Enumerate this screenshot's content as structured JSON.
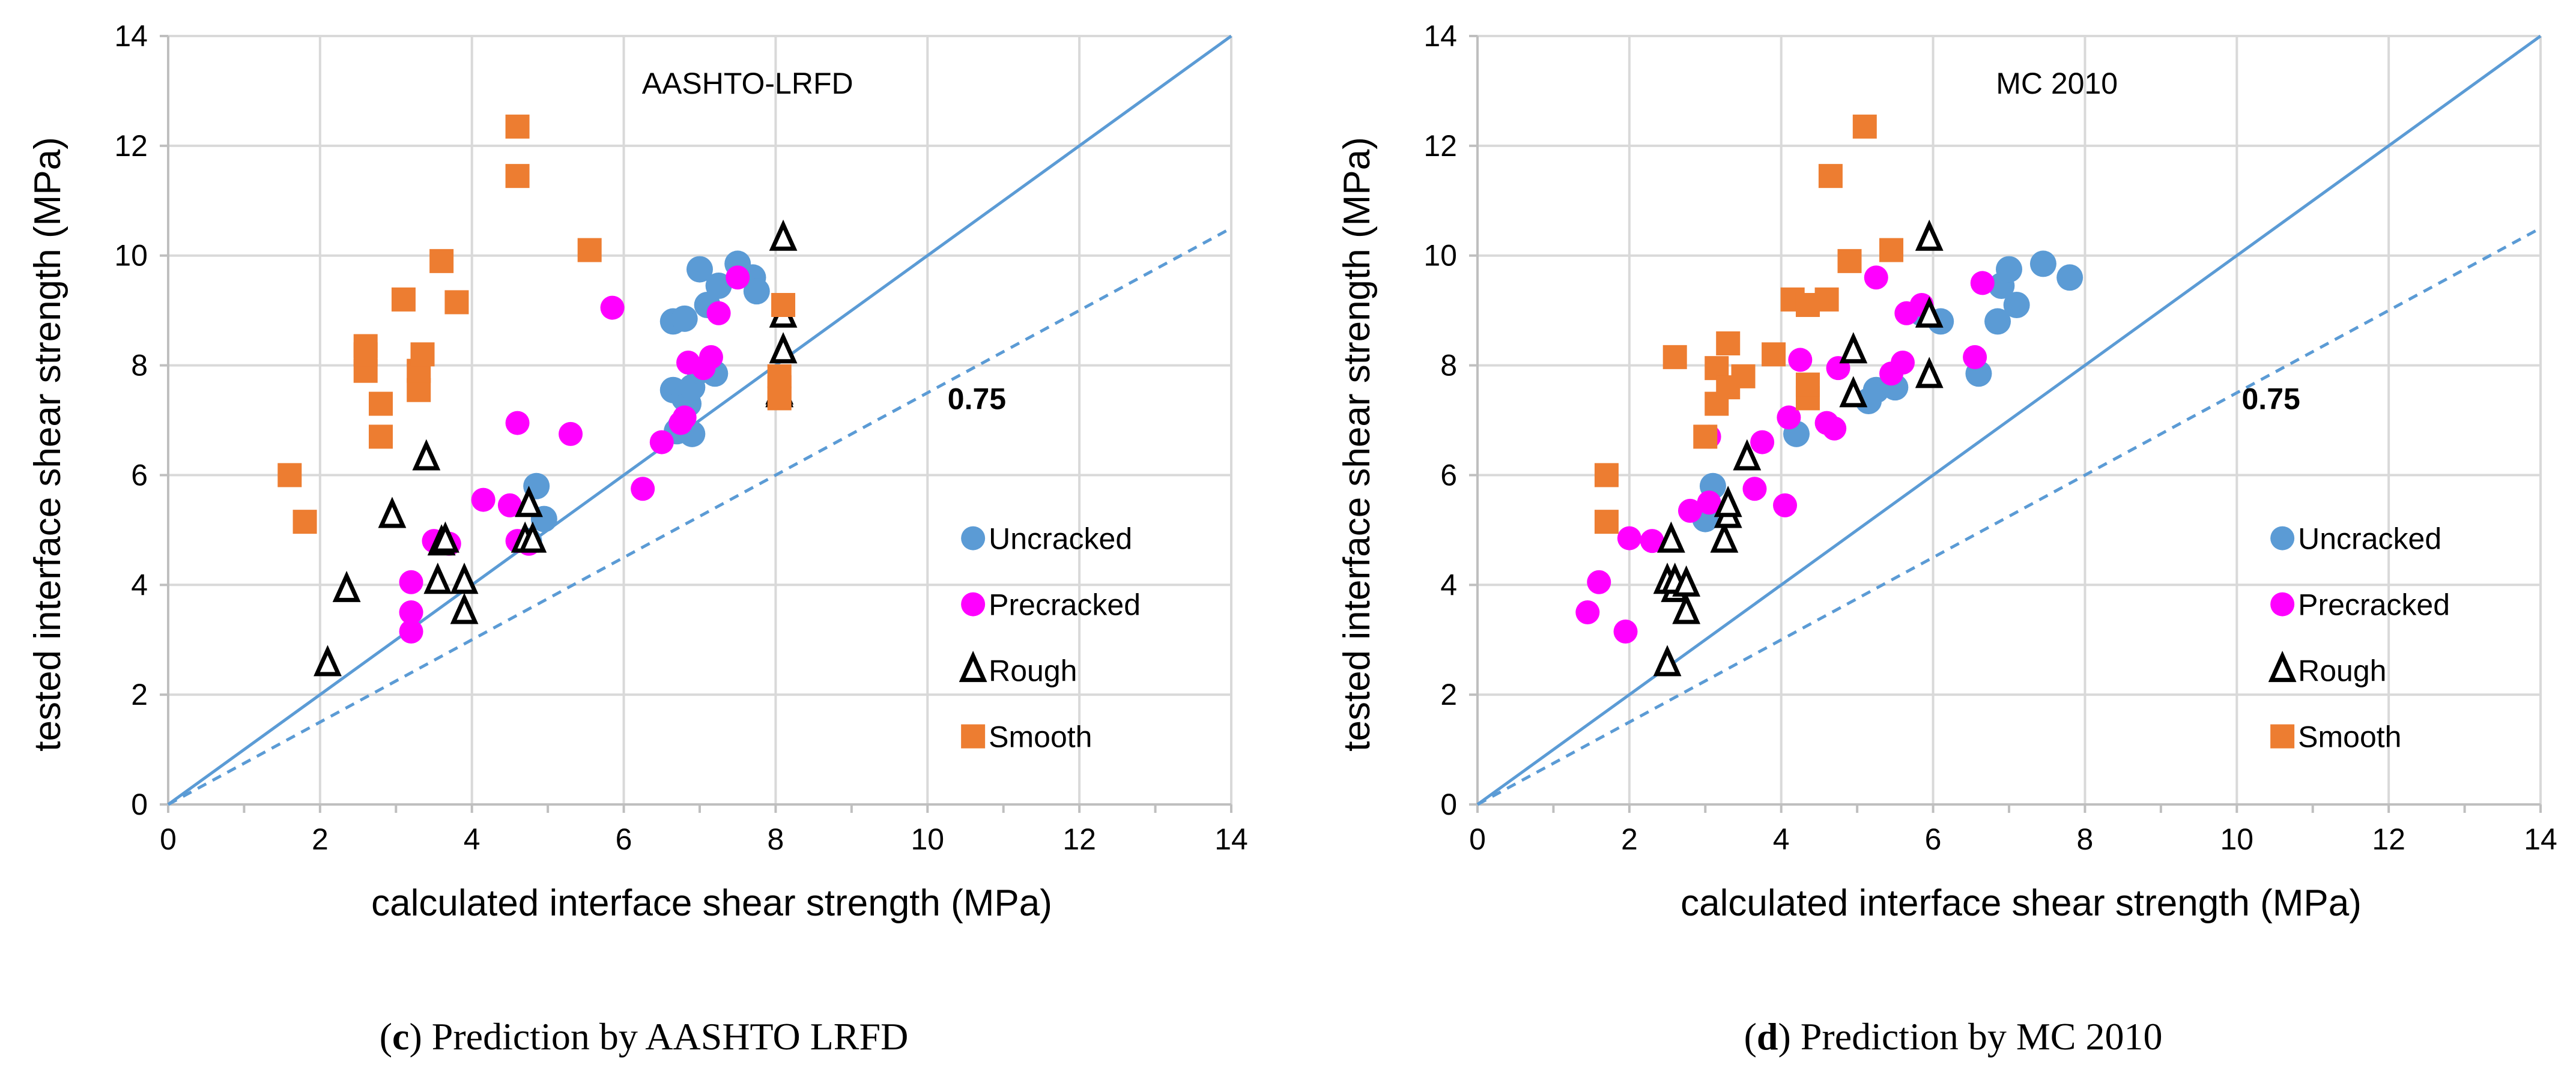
{
  "chart_data": [
    {
      "type": "scatter",
      "title": "AASHTO-LRFD",
      "xlabel": "calculated interface shear strength (MPa)",
      "ylabel": "tested interface shear strength (MPa)",
      "xlim": [
        0,
        14
      ],
      "ylim": [
        0,
        14
      ],
      "xticks": [
        0,
        2,
        4,
        6,
        8,
        10,
        12,
        14
      ],
      "yticks": [
        0,
        2,
        4,
        6,
        8,
        10,
        12,
        14
      ],
      "grid": true,
      "reference_lines": [
        {
          "name": "1.0",
          "slope": 1.0,
          "style": "solid",
          "color": "#5b9bd5"
        },
        {
          "name": "0.75",
          "slope": 0.75,
          "style": "dashed",
          "color": "#5b9bd5",
          "label": "0.75",
          "label_at": [
            10.65,
            7.2
          ]
        }
      ],
      "legend_position": "right",
      "caption_letter": "c",
      "caption_text": " Prediction by AASHTO LRFD",
      "series": [
        {
          "name": "Uncracked",
          "marker": "circle",
          "color": "#5b9bd5",
          "points": [
            [
              4.85,
              5.8
            ],
            [
              4.95,
              5.2
            ],
            [
              4.75,
              4.8
            ],
            [
              6.65,
              7.55
            ],
            [
              6.7,
              6.8
            ],
            [
              6.75,
              6.9
            ],
            [
              6.8,
              7.4
            ],
            [
              6.85,
              7.3
            ],
            [
              6.9,
              6.75
            ],
            [
              6.9,
              7.6
            ],
            [
              7.0,
              7.9
            ],
            [
              7.2,
              7.85
            ],
            [
              6.65,
              8.8
            ],
            [
              6.8,
              8.85
            ],
            [
              7.0,
              9.75
            ],
            [
              7.1,
              9.1
            ],
            [
              7.25,
              9.45
            ],
            [
              7.5,
              9.85
            ],
            [
              7.7,
              9.6
            ],
            [
              7.75,
              9.35
            ]
          ]
        },
        {
          "name": "Precracked",
          "marker": "circle",
          "color": "#ff00ff",
          "points": [
            [
              3.2,
              3.15
            ],
            [
              3.2,
              3.5
            ],
            [
              3.2,
              4.05
            ],
            [
              3.5,
              4.8
            ],
            [
              3.7,
              4.75
            ],
            [
              4.15,
              5.55
            ],
            [
              4.5,
              5.45
            ],
            [
              4.6,
              4.8
            ],
            [
              4.6,
              6.95
            ],
            [
              4.75,
              4.75
            ],
            [
              5.3,
              6.75
            ],
            [
              5.85,
              9.05
            ],
            [
              6.25,
              5.75
            ],
            [
              6.5,
              6.6
            ],
            [
              6.75,
              6.95
            ],
            [
              6.8,
              7.05
            ],
            [
              6.85,
              8.05
            ],
            [
              7.05,
              7.95
            ],
            [
              7.15,
              8.15
            ],
            [
              7.25,
              8.95
            ],
            [
              7.5,
              9.6
            ]
          ]
        },
        {
          "name": "Rough",
          "marker": "triangle",
          "color": "#000000",
          "points": [
            [
              2.1,
              2.55
            ],
            [
              2.35,
              3.9
            ],
            [
              2.95,
              5.25
            ],
            [
              3.4,
              6.3
            ],
            [
              3.55,
              4.05
            ],
            [
              3.6,
              4.75
            ],
            [
              3.65,
              4.8
            ],
            [
              3.9,
              3.5
            ],
            [
              3.9,
              4.05
            ],
            [
              4.7,
              4.8
            ],
            [
              4.75,
              5.45
            ],
            [
              4.8,
              4.8
            ],
            [
              8.05,
              7.45
            ],
            [
              8.05,
              7.5
            ],
            [
              8.1,
              8.25
            ],
            [
              8.1,
              8.9
            ],
            [
              8.1,
              10.3
            ]
          ]
        },
        {
          "name": "Smooth",
          "marker": "square",
          "color": "#ed7d31",
          "points": [
            [
              1.6,
              6.0
            ],
            [
              1.8,
              5.15
            ],
            [
              2.6,
              7.9
            ],
            [
              2.6,
              8.2
            ],
            [
              2.6,
              8.35
            ],
            [
              2.8,
              6.7
            ],
            [
              2.8,
              7.3
            ],
            [
              3.1,
              9.2
            ],
            [
              3.3,
              7.55
            ],
            [
              3.3,
              7.9
            ],
            [
              3.35,
              8.2
            ],
            [
              3.6,
              9.9
            ],
            [
              3.8,
              9.15
            ],
            [
              4.6,
              11.45
            ],
            [
              4.6,
              12.35
            ],
            [
              5.55,
              10.1
            ],
            [
              8.05,
              7.4
            ],
            [
              8.05,
              7.6
            ],
            [
              8.05,
              7.8
            ],
            [
              8.1,
              9.1
            ]
          ]
        }
      ]
    },
    {
      "type": "scatter",
      "title": "MC 2010",
      "xlabel": "calculated interface shear strength (MPa)",
      "ylabel": "tested interface shear strength (MPa)",
      "xlim": [
        0,
        14
      ],
      "ylim": [
        0,
        14
      ],
      "xticks": [
        0,
        2,
        4,
        6,
        8,
        10,
        12,
        14
      ],
      "yticks": [
        0,
        2,
        4,
        6,
        8,
        10,
        12,
        14
      ],
      "grid": true,
      "reference_lines": [
        {
          "name": "1.0",
          "slope": 1.0,
          "style": "solid",
          "color": "#5b9bd5"
        },
        {
          "name": "0.75",
          "slope": 0.75,
          "style": "dashed",
          "color": "#5b9bd5",
          "label": "0.75",
          "label_at": [
            10.45,
            7.2
          ]
        }
      ],
      "legend_position": "right",
      "caption_letter": "d",
      "caption_text": " Prediction by MC 2010",
      "series": [
        {
          "name": "Uncracked",
          "marker": "circle",
          "color": "#5b9bd5",
          "points": [
            [
              3.0,
              5.2
            ],
            [
              3.1,
              5.8
            ],
            [
              4.2,
              6.75
            ],
            [
              5.15,
              7.35
            ],
            [
              5.25,
              7.55
            ],
            [
              5.5,
              7.6
            ],
            [
              5.85,
              8.95
            ],
            [
              6.1,
              8.8
            ],
            [
              6.6,
              7.85
            ],
            [
              6.85,
              8.8
            ],
            [
              6.9,
              9.45
            ],
            [
              7.0,
              9.75
            ],
            [
              7.1,
              9.1
            ],
            [
              7.45,
              9.85
            ],
            [
              7.8,
              9.6
            ]
          ]
        },
        {
          "name": "Precracked",
          "marker": "circle",
          "color": "#ff00ff",
          "points": [
            [
              1.45,
              3.5
            ],
            [
              1.6,
              4.05
            ],
            [
              1.95,
              3.15
            ],
            [
              2.0,
              4.85
            ],
            [
              2.3,
              4.8
            ],
            [
              2.8,
              5.35
            ],
            [
              3.05,
              5.5
            ],
            [
              3.05,
              6.7
            ],
            [
              3.65,
              5.75
            ],
            [
              3.75,
              6.6
            ],
            [
              4.05,
              5.45
            ],
            [
              4.1,
              7.05
            ],
            [
              4.25,
              8.1
            ],
            [
              4.6,
              6.95
            ],
            [
              4.7,
              6.85
            ],
            [
              4.75,
              7.95
            ],
            [
              5.25,
              9.6
            ],
            [
              5.45,
              7.85
            ],
            [
              5.6,
              8.05
            ],
            [
              5.65,
              8.95
            ],
            [
              5.85,
              9.1
            ],
            [
              6.55,
              8.15
            ],
            [
              6.65,
              9.5
            ]
          ]
        },
        {
          "name": "Rough",
          "marker": "triangle",
          "color": "#000000",
          "points": [
            [
              2.5,
              2.55
            ],
            [
              2.5,
              4.05
            ],
            [
              2.55,
              4.8
            ],
            [
              2.6,
              3.9
            ],
            [
              2.6,
              4.05
            ],
            [
              2.75,
              3.5
            ],
            [
              2.75,
              4.0
            ],
            [
              3.25,
              4.8
            ],
            [
              3.3,
              5.25
            ],
            [
              3.3,
              5.45
            ],
            [
              3.55,
              6.3
            ],
            [
              4.95,
              7.45
            ],
            [
              4.95,
              8.25
            ],
            [
              5.95,
              7.8
            ],
            [
              5.95,
              8.9
            ],
            [
              5.95,
              10.3
            ]
          ]
        },
        {
          "name": "Smooth",
          "marker": "square",
          "color": "#ed7d31",
          "points": [
            [
              1.7,
              6.0
            ],
            [
              1.7,
              5.15
            ],
            [
              2.6,
              8.15
            ],
            [
              3.0,
              6.7
            ],
            [
              3.15,
              7.3
            ],
            [
              3.15,
              7.95
            ],
            [
              3.3,
              8.4
            ],
            [
              3.3,
              7.6
            ],
            [
              3.5,
              7.8
            ],
            [
              3.9,
              8.2
            ],
            [
              4.15,
              9.2
            ],
            [
              4.35,
              7.4
            ],
            [
              4.35,
              9.1
            ],
            [
              4.35,
              7.65
            ],
            [
              4.6,
              9.2
            ],
            [
              4.65,
              11.45
            ],
            [
              4.9,
              9.9
            ],
            [
              5.1,
              12.35
            ],
            [
              5.45,
              10.1
            ]
          ]
        }
      ]
    }
  ]
}
